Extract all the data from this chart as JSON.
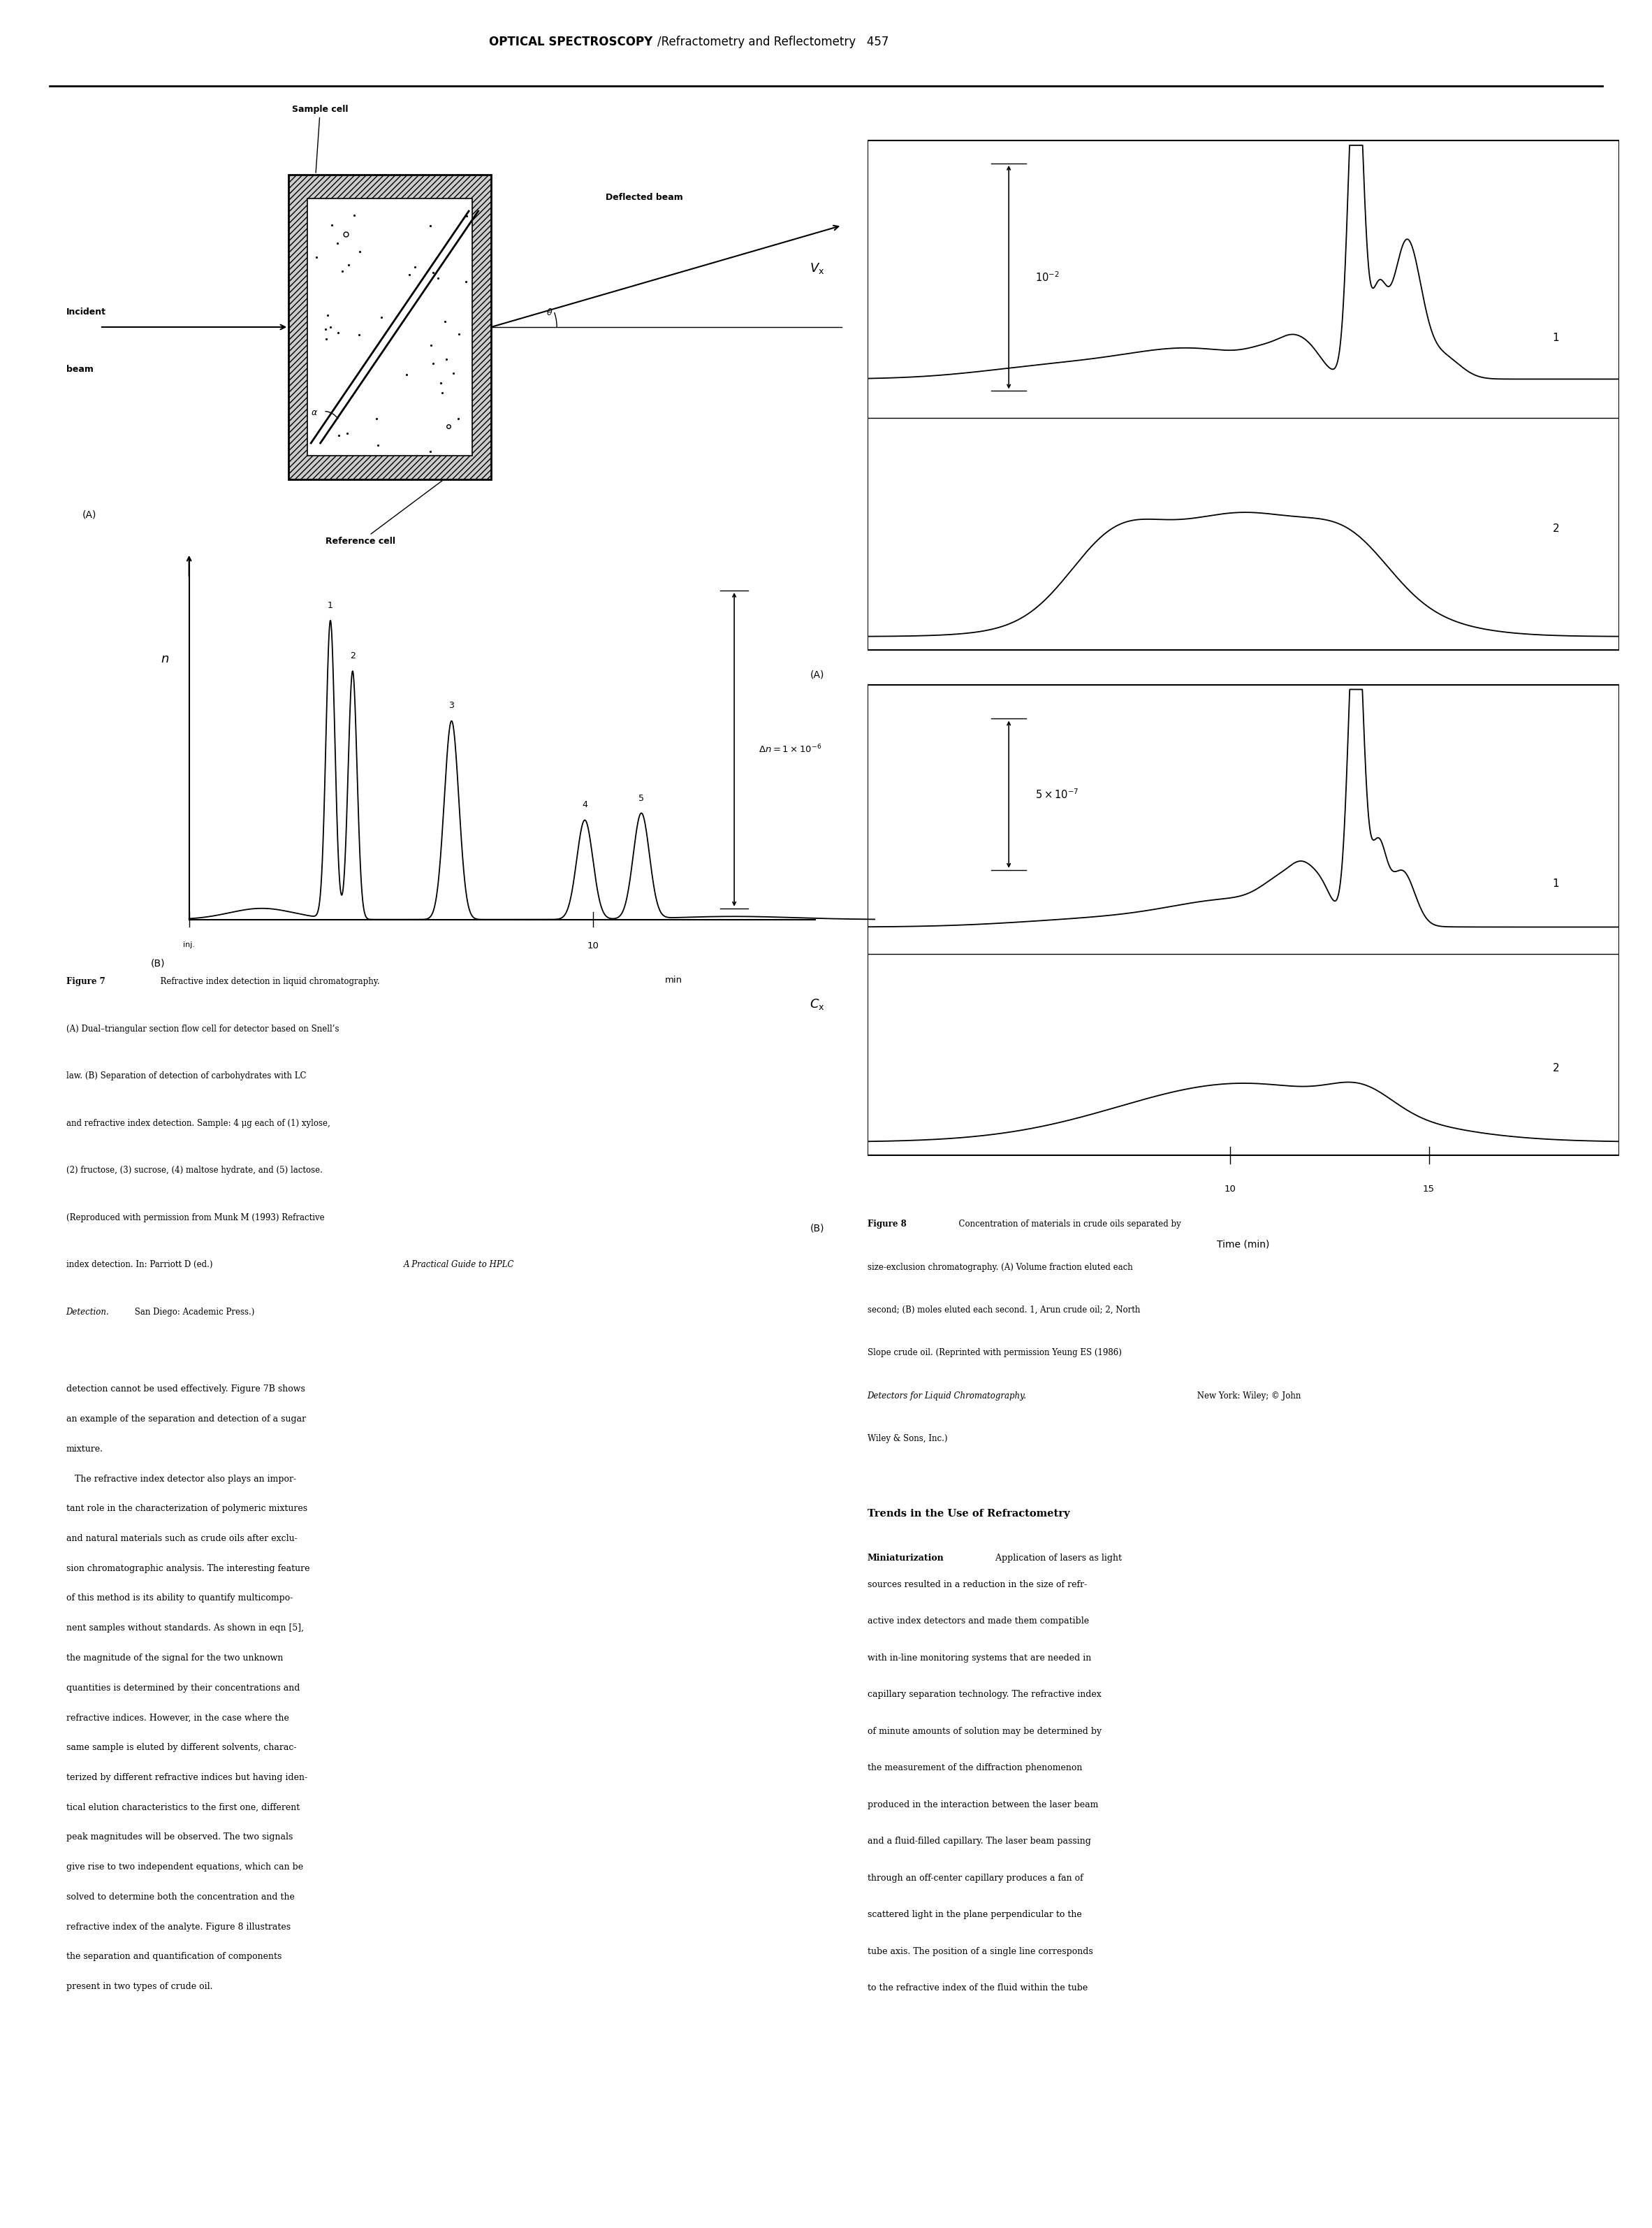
{
  "bg_color": "#ffffff",
  "fig_width": 23.65,
  "fig_height": 31.88,
  "header_bold": "OPTICAL SPECTROSCOPY",
  "header_rest": "/Refractometry and Reflectometry   457",
  "fig7B_peaks_t": [
    3.5,
    4.05,
    6.5,
    9.8,
    11.2
  ],
  "fig7B_peaks_h": [
    4.8,
    4.0,
    3.2,
    1.6,
    1.7
  ],
  "fig7B_peaks_labels": [
    "1",
    "2",
    "3",
    "4",
    "5"
  ],
  "fig8_caption": "Figure 8   Concentration of materials in crude oils separated by\nsize-exclusion chromatography. (A) Volume fraction eluted each\nsecond; (B) moles eluted each second. 1, Arun crude oil; 2, North\nSlope crude oil. (Reprinted with permission Yeung ES (1986)\nDetectors for Liquid Chromatography. New York: Wiley; © John\nWiley & Sons, Inc.)",
  "fig7_caption_lines": [
    "Figure 7   Refractive index detection in liquid chromatography.",
    "(A) Dual–triangular section flow cell for detector based on Snell’s",
    "law. (B) Separation of detection of carbohydrates with LC",
    "and refractive index detection. Sample: 4 μg each of (1) xylose,",
    "(2) fructose, (3) sucrose, (4) maltose hydrate, and (5) lactose.",
    "(Reproduced with permission from Munk M (1993) Refractive",
    "index detection. In: Parriott D (ed.) A Practical Guide to HPLC",
    "Detection. San Diego: Academic Press.)"
  ],
  "body_left_lines": [
    "detection cannot be used effectively. Figure 7B shows",
    "an example of the separation and detection of a sugar",
    "mixture.",
    "   The refractive index detector also plays an impor-",
    "tant role in the characterization of polymeric mixtures",
    "and natural materials such as crude oils after exclu-",
    "sion chromatographic analysis. The interesting feature",
    "of this method is its ability to quantify multicompo-",
    "nent samples without standards. As shown in eqn [5],",
    "the magnitude of the signal for the two unknown",
    "quantities is determined by their concentrations and",
    "refractive indices. However, in the case where the",
    "same sample is eluted by different solvents, charac-",
    "terized by different refractive indices but having iden-",
    "tical elution characteristics to the first one, different",
    "peak magnitudes will be observed. The two signals",
    "give rise to two independent equations, which can be",
    "solved to determine both the concentration and the",
    "refractive index of the analyte. Figure 8 illustrates",
    "the separation and quantification of components",
    "present in two types of crude oil."
  ],
  "section_title": "Trends in the Use of Refractometry",
  "body_right_lines": [
    "sources resulted in a reduction in the size of refr-",
    "active index detectors and made them compatible",
    "with in-line monitoring systems that are needed in",
    "capillary separation technology. The refractive index",
    "of minute amounts of solution may be determined by",
    "the measurement of the diffraction phenomenon",
    "produced in the interaction between the laser beam",
    "and a fluid-filled capillary. The laser beam passing",
    "through an off-center capillary produces a fan of",
    "scattered light in the plane perpendicular to the",
    "tube axis. The position of a single line corresponds",
    "to the refractive index of the fluid within the tube"
  ]
}
